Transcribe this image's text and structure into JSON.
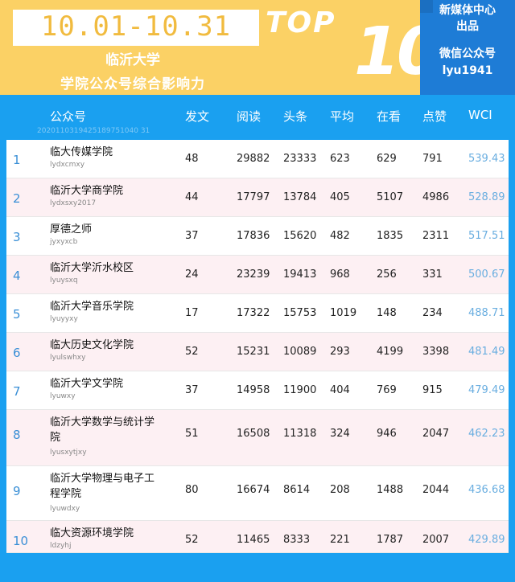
{
  "header": {
    "date_range": "10.01-10.31",
    "school": "临沂大学",
    "subtitle": "学院公众号综合影响力",
    "top_word": "TOP",
    "top_number": "10",
    "brand": {
      "line1": "新媒体中心",
      "line2": "出品",
      "line3": "微信公众号",
      "line4": "lyu1941"
    },
    "colors": {
      "yellow": "#fbd165",
      "blue": "#1e7cd6",
      "table_blue": "#1aa0f0"
    }
  },
  "table": {
    "columns": [
      "公众号",
      "发文",
      "阅读",
      "头条",
      "平均",
      "在看",
      "点赞",
      "WCI"
    ],
    "stamp": "2020110319425189751040 31",
    "rows": [
      {
        "rank": "1",
        "name": "临大传媒学院",
        "account": "lydxcmxy",
        "fawen": "48",
        "yuedu": "29882",
        "toutiao": "23333",
        "pingjun": "623",
        "zaikan": "629",
        "dianzan": "791",
        "wci": "539.43"
      },
      {
        "rank": "2",
        "name": "临沂大学商学院",
        "account": "lydxsxy2017",
        "fawen": "44",
        "yuedu": "17797",
        "toutiao": "13784",
        "pingjun": "405",
        "zaikan": "5107",
        "dianzan": "4986",
        "wci": "528.89"
      },
      {
        "rank": "3",
        "name": "厚德之师",
        "account": "jyxyxcb",
        "fawen": "37",
        "yuedu": "17836",
        "toutiao": "15620",
        "pingjun": "482",
        "zaikan": "1835",
        "dianzan": "2311",
        "wci": "517.51"
      },
      {
        "rank": "4",
        "name": "临沂大学沂水校区",
        "account": "lyuysxq",
        "fawen": "24",
        "yuedu": "23239",
        "toutiao": "19413",
        "pingjun": "968",
        "zaikan": "256",
        "dianzan": "331",
        "wci": "500.67"
      },
      {
        "rank": "5",
        "name": "临沂大学音乐学院",
        "account": "lyuyyxy",
        "fawen": "17",
        "yuedu": "17322",
        "toutiao": "15753",
        "pingjun": "1019",
        "zaikan": "148",
        "dianzan": "234",
        "wci": "488.71"
      },
      {
        "rank": "6",
        "name": "临大历史文化学院",
        "account": "lyulswhxy",
        "fawen": "52",
        "yuedu": "15231",
        "toutiao": "10089",
        "pingjun": "293",
        "zaikan": "4199",
        "dianzan": "3398",
        "wci": "481.49"
      },
      {
        "rank": "7",
        "name": "临沂大学文学院",
        "account": "lyuwxy",
        "fawen": "37",
        "yuedu": "14958",
        "toutiao": "11900",
        "pingjun": "404",
        "zaikan": "769",
        "dianzan": "915",
        "wci": "479.49"
      },
      {
        "rank": "8",
        "name": "临沂大学数学与统计学院",
        "account": "lyusxytjxy",
        "fawen": "51",
        "yuedu": "16508",
        "toutiao": "11318",
        "pingjun": "324",
        "zaikan": "946",
        "dianzan": "2047",
        "wci": "462.23"
      },
      {
        "rank": "9",
        "name": "临沂大学物理与电子工程学院",
        "account": "lyuwdxy",
        "fawen": "80",
        "yuedu": "16674",
        "toutiao": "8614",
        "pingjun": "208",
        "zaikan": "1488",
        "dianzan": "2044",
        "wci": "436.68"
      },
      {
        "rank": "10",
        "name": "临大资源环境学院",
        "account": "ldzyhj",
        "fawen": "52",
        "yuedu": "11465",
        "toutiao": "8333",
        "pingjun": "221",
        "zaikan": "1787",
        "dianzan": "2007",
        "wci": "429.89"
      }
    ]
  }
}
